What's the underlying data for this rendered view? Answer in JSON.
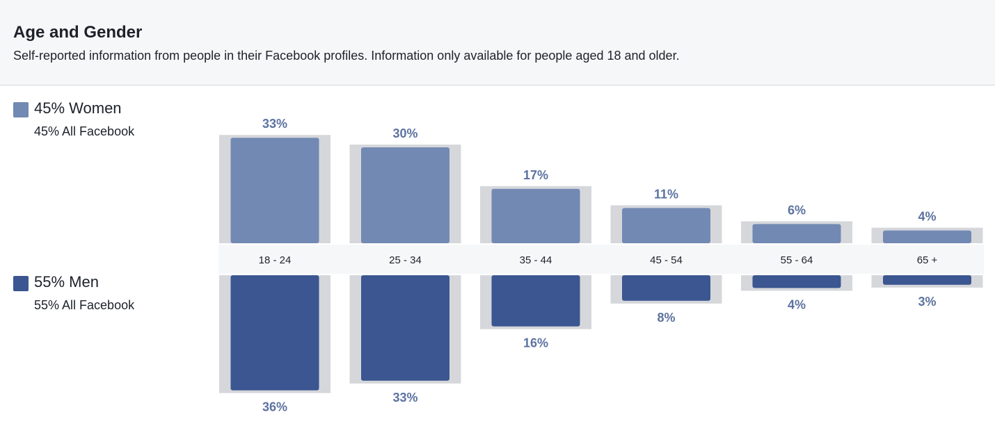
{
  "header": {
    "title": "Age and Gender",
    "subtitle": "Self-reported information from people in their Facebook profiles. Information only available for people aged 18 and older."
  },
  "legend": {
    "women": {
      "label": "45% Women",
      "sub": "45% All Facebook",
      "color": "#7289b3"
    },
    "men": {
      "label": "55% Men",
      "sub": "55% All Facebook",
      "color": "#3b5690"
    }
  },
  "colors": {
    "background_bar": "#d6d7db",
    "label_text": "#5c72a0",
    "axis_band": "#f6f7f9"
  },
  "chart_data": {
    "type": "bar",
    "categories": [
      "18 - 24",
      "25 - 34",
      "35 - 44",
      "45 - 54",
      "55 - 64",
      "65 +"
    ],
    "series": [
      {
        "name": "45% Women",
        "values": [
          33,
          30,
          17,
          11,
          6,
          4
        ],
        "benchmark": [
          33,
          30,
          17,
          11,
          6,
          4
        ],
        "labels": [
          "33%",
          "30%",
          "17%",
          "11%",
          "6%",
          "4%"
        ]
      },
      {
        "name": "55% Men",
        "values": [
          36,
          33,
          16,
          8,
          4,
          3
        ],
        "benchmark": [
          36,
          33,
          16,
          8,
          4,
          3
        ],
        "labels": [
          "36%",
          "33%",
          "16%",
          "8%",
          "4%",
          "3%"
        ]
      }
    ]
  }
}
